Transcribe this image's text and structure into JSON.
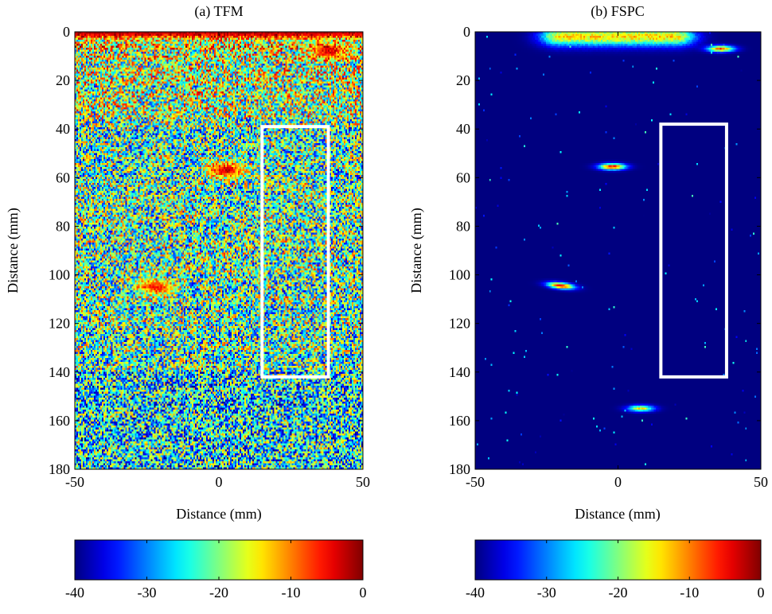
{
  "chart_data": [
    {
      "type": "heatmap",
      "title": "(a) TFM",
      "xlabel": "Distance (mm)",
      "ylabel": "Distance (mm)",
      "xlim": [
        -50,
        50
      ],
      "ylim": [
        180,
        0
      ],
      "x_ticks": [
        "-50",
        "0",
        "50"
      ],
      "y_ticks": [
        "0",
        "20",
        "40",
        "60",
        "80",
        "100",
        "120",
        "140",
        "160",
        "180"
      ],
      "colorbar": {
        "range": [
          -40,
          0
        ],
        "ticks": [
          "-40",
          "-30",
          "-20",
          "-10",
          "0"
        ],
        "colormap": "jet"
      },
      "background_level": -22,
      "noise_amplitude": 14,
      "features": [
        {
          "kind": "front-wall",
          "x": [
            -50,
            50
          ],
          "y": 0,
          "level": -2
        },
        {
          "kind": "reflector",
          "x": 2.5,
          "y": 57,
          "level": -3
        },
        {
          "kind": "reflector",
          "x": -22,
          "y": 105,
          "level": -6
        },
        {
          "kind": "reflector",
          "x": 38,
          "y": 8,
          "level": -4
        }
      ],
      "roi": {
        "x": [
          15,
          38
        ],
        "y": [
          39,
          142
        ],
        "color": "#ffffff"
      }
    },
    {
      "type": "heatmap",
      "title": "(b) FSPC",
      "xlabel": "Distance (mm)",
      "ylabel": "Distance (mm)",
      "xlim": [
        -50,
        50
      ],
      "ylim": [
        180,
        0
      ],
      "x_ticks": [
        "-50",
        "0",
        "50"
      ],
      "y_ticks": [
        "0",
        "20",
        "40",
        "60",
        "80",
        "100",
        "120",
        "140",
        "160",
        "180"
      ],
      "colorbar": {
        "range": [
          -40,
          0
        ],
        "ticks": [
          "-40",
          "-30",
          "-20",
          "-10",
          "0"
        ],
        "colormap": "jet"
      },
      "background_level": -40,
      "features": [
        {
          "kind": "front-wall",
          "x": [
            -20,
            20
          ],
          "y": 2,
          "level": -14
        },
        {
          "kind": "reflector",
          "x": -2,
          "y": 55.5,
          "level": -5
        },
        {
          "kind": "reflector",
          "x": -20,
          "y": 104.5,
          "level": -5
        },
        {
          "kind": "reflector",
          "x": 36,
          "y": 7,
          "level": -8
        },
        {
          "kind": "reflector",
          "x": 8,
          "y": 155,
          "level": -15
        }
      ],
      "roi": {
        "x": [
          15,
          38
        ],
        "y": [
          38,
          142
        ],
        "color": "#ffffff"
      }
    }
  ]
}
